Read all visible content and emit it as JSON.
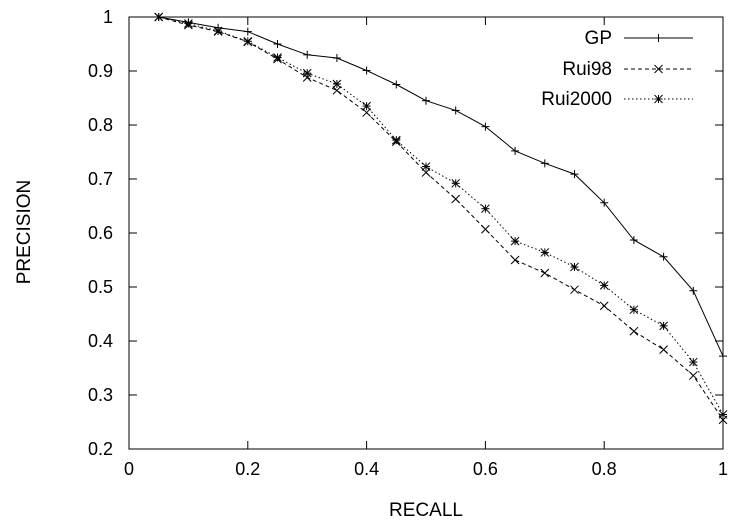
{
  "chart_data": {
    "type": "line",
    "xlabel": "RECALL",
    "ylabel": "PRECISION",
    "xlim": [
      0,
      1
    ],
    "ylim": [
      0.2,
      1
    ],
    "x_ticks": [
      "0",
      "0.2",
      "0.4",
      "0.6",
      "0.8",
      "1"
    ],
    "y_ticks": [
      "0.2",
      "0.3",
      "0.4",
      "0.5",
      "0.6",
      "0.7",
      "0.8",
      "0.9",
      "1"
    ],
    "grid": false,
    "legend_position": "top-right",
    "x": [
      0.05,
      0.1,
      0.15,
      0.2,
      0.25,
      0.3,
      0.35,
      0.4,
      0.45,
      0.5,
      0.55,
      0.6,
      0.65,
      0.7,
      0.75,
      0.8,
      0.85,
      0.9,
      0.95,
      1.0
    ],
    "series": [
      {
        "name": "GP",
        "line_style": "solid",
        "marker": "plus",
        "color": "#000000",
        "values": [
          1.0,
          0.99,
          0.98,
          0.973,
          0.95,
          0.93,
          0.924,
          0.901,
          0.875,
          0.845,
          0.827,
          0.797,
          0.752,
          0.729,
          0.709,
          0.656,
          0.587,
          0.556,
          0.493,
          0.372
        ]
      },
      {
        "name": "Rui98",
        "line_style": "dashed",
        "marker": "x",
        "color": "#000000",
        "values": [
          1.0,
          0.985,
          0.973,
          0.954,
          0.922,
          0.888,
          0.864,
          0.823,
          0.769,
          0.712,
          0.663,
          0.607,
          0.55,
          0.526,
          0.495,
          0.465,
          0.418,
          0.384,
          0.336,
          0.254
        ]
      },
      {
        "name": "Rui2000",
        "line_style": "dotted",
        "marker": "asterisk",
        "color": "#000000",
        "values": [
          1.0,
          0.988,
          0.974,
          0.955,
          0.925,
          0.896,
          0.876,
          0.835,
          0.772,
          0.723,
          0.692,
          0.645,
          0.585,
          0.564,
          0.537,
          0.503,
          0.458,
          0.428,
          0.361,
          0.264
        ]
      }
    ]
  }
}
